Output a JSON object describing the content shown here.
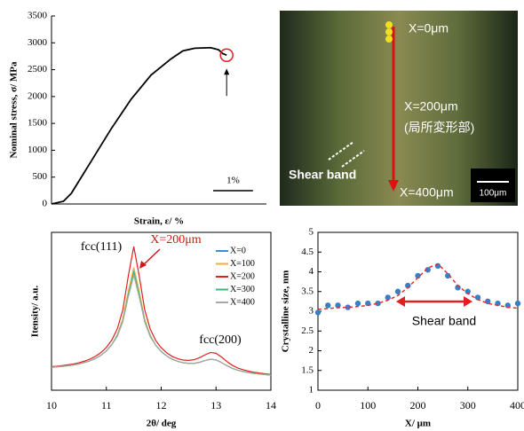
{
  "chart_data": [
    {
      "type": "line",
      "ylabel": "Nominal stress, σ/ MPa",
      "xlabel": "Strain, ε/ %",
      "xlim": [
        0,
        5.4
      ],
      "ylim": [
        0,
        3500
      ],
      "yticks": [
        0,
        500,
        1000,
        1500,
        2000,
        2500,
        3000,
        3500
      ],
      "x": [
        0,
        0.3,
        0.5,
        1,
        1.5,
        2,
        2.5,
        3,
        3.3,
        3.6,
        4,
        4.2,
        4.3,
        4.4
      ],
      "series": [
        {
          "color": "#000000",
          "values": [
            0,
            50,
            200,
            800,
            1400,
            1950,
            2400,
            2700,
            2850,
            2900,
            2910,
            2870,
            2800,
            2770
          ]
        }
      ],
      "scale_bar": {
        "value": 1,
        "label": "1%"
      }
    },
    {
      "type": "line",
      "ylabel": "Itensity/ a.u.",
      "xlabel": "2θ/ deg",
      "xlim": [
        10,
        14
      ],
      "xticks": [
        10,
        11,
        12,
        13,
        14
      ],
      "ylim": [
        0,
        100
      ],
      "legend": "top-right",
      "annotations": [
        "fcc(111)",
        "X=200μm",
        "fcc(200)"
      ],
      "x": [
        10.0,
        10.1,
        10.2,
        10.3,
        10.4,
        10.5,
        10.6,
        10.7,
        10.8,
        10.9,
        11.0,
        11.1,
        11.2,
        11.3,
        11.4,
        11.5,
        11.6,
        11.7,
        11.8,
        11.9,
        12.0,
        12.1,
        12.2,
        12.3,
        12.4,
        12.5,
        12.6,
        12.7,
        12.8,
        12.9,
        13.0,
        13.1,
        13.2,
        13.3,
        13.4,
        13.5,
        13.6,
        13.7,
        13.8,
        13.9,
        14.0
      ],
      "series": [
        {
          "name": "X=0",
          "color": "#3b8fd9",
          "values": [
            14.5,
            14.8,
            15.1,
            15.5,
            16.0,
            16.6,
            17.5,
            18.6,
            20.1,
            22.1,
            24.9,
            28.9,
            34.7,
            44.4,
            61.2,
            75.8,
            61.1,
            44.2,
            34.4,
            28.4,
            24.5,
            21.7,
            19.6,
            18.3,
            17.4,
            17.0,
            17.0,
            17.7,
            18.8,
            19.6,
            19.2,
            17.5,
            15.5,
            13.8,
            12.6,
            11.8,
            11.1,
            10.6,
            10.2,
            9.9,
            9.5
          ]
        },
        {
          "name": "X=100",
          "color": "#f0b030",
          "values": [
            14.5,
            14.8,
            15.1,
            15.5,
            16.0,
            16.6,
            17.5,
            18.6,
            20.1,
            22.1,
            24.9,
            28.9,
            35.1,
            45.1,
            62.6,
            77.8,
            62.5,
            44.9,
            34.8,
            28.4,
            24.5,
            21.7,
            19.6,
            18.3,
            17.4,
            17.0,
            17.0,
            17.7,
            18.8,
            19.6,
            19.2,
            17.5,
            15.5,
            13.8,
            12.6,
            11.8,
            11.1,
            10.6,
            10.2,
            9.9,
            9.5
          ]
        },
        {
          "name": "X=200",
          "color": "#e02020",
          "values": [
            14.9,
            15.2,
            15.6,
            16.1,
            16.6,
            17.4,
            18.4,
            19.7,
            21.4,
            23.8,
            27.1,
            31.8,
            38.9,
            50.9,
            72.3,
            91.0,
            72.2,
            50.8,
            38.7,
            31.5,
            26.9,
            23.7,
            21.4,
            20.0,
            19.1,
            18.9,
            19.3,
            20.6,
            22.4,
            23.9,
            23.4,
            21.0,
            18.1,
            15.7,
            14.0,
            12.9,
            12.0,
            11.3,
            10.8,
            10.4,
            9.9
          ]
        },
        {
          "name": "X=300",
          "color": "#3cb878",
          "values": [
            14.5,
            14.8,
            15.1,
            15.5,
            16.0,
            16.6,
            17.5,
            18.6,
            20.1,
            22.1,
            24.9,
            28.9,
            34.7,
            44.0,
            60.5,
            74.8,
            60.4,
            43.8,
            34.4,
            28.4,
            24.5,
            21.7,
            19.6,
            18.3,
            17.4,
            17.0,
            17.0,
            17.7,
            18.8,
            19.6,
            19.2,
            17.5,
            15.5,
            13.8,
            12.6,
            11.8,
            11.1,
            10.6,
            10.2,
            9.9,
            9.5
          ]
        },
        {
          "name": "X=400",
          "color": "#a8a8a8",
          "values": [
            14.5,
            14.8,
            15.1,
            15.5,
            16.0,
            16.6,
            17.5,
            18.6,
            20.1,
            22.1,
            24.9,
            28.9,
            34.1,
            43.3,
            59.1,
            72.8,
            59.0,
            43.1,
            33.8,
            28.4,
            24.5,
            21.7,
            19.6,
            18.3,
            17.4,
            17.0,
            17.0,
            17.7,
            18.8,
            19.6,
            19.2,
            17.5,
            15.5,
            13.8,
            12.6,
            11.8,
            11.1,
            10.6,
            10.2,
            9.9,
            9.5
          ]
        }
      ]
    },
    {
      "type": "scatter",
      "ylabel": "Crystalline size, nm",
      "xlabel": "X/ μm",
      "xlim": [
        0,
        400
      ],
      "xticks": [
        0,
        100,
        200,
        300,
        400
      ],
      "ylim": [
        1,
        5
      ],
      "yticks": [
        1,
        1.5,
        2,
        2.5,
        3,
        3.5,
        4,
        4.5,
        5
      ],
      "annotation": "Shear band",
      "x": [
        0,
        20,
        40,
        60,
        80,
        100,
        120,
        140,
        160,
        180,
        200,
        220,
        240,
        260,
        280,
        300,
        320,
        340,
        360,
        380,
        400
      ],
      "series": [
        {
          "type": "scatter",
          "color": "#3a7fc4",
          "values": [
            2.97,
            3.15,
            3.15,
            3.1,
            3.2,
            3.2,
            3.2,
            3.35,
            3.5,
            3.65,
            3.9,
            4.05,
            4.15,
            3.9,
            3.6,
            3.5,
            3.35,
            3.25,
            3.2,
            3.15,
            3.2
          ]
        },
        {
          "type": "line",
          "color": "#e03030",
          "values": [
            3.05,
            3.07,
            3.09,
            3.1,
            3.12,
            3.15,
            3.2,
            3.28,
            3.4,
            3.6,
            3.85,
            4.1,
            4.2,
            3.95,
            3.65,
            3.45,
            3.3,
            3.2,
            3.15,
            3.1,
            3.08
          ]
        }
      ]
    }
  ],
  "micrograph": {
    "labels": [
      "X=0μm",
      "X=200μm",
      "(局所変形部)",
      "Shear band",
      "X=400μm"
    ],
    "scale_bar": "100μm"
  }
}
